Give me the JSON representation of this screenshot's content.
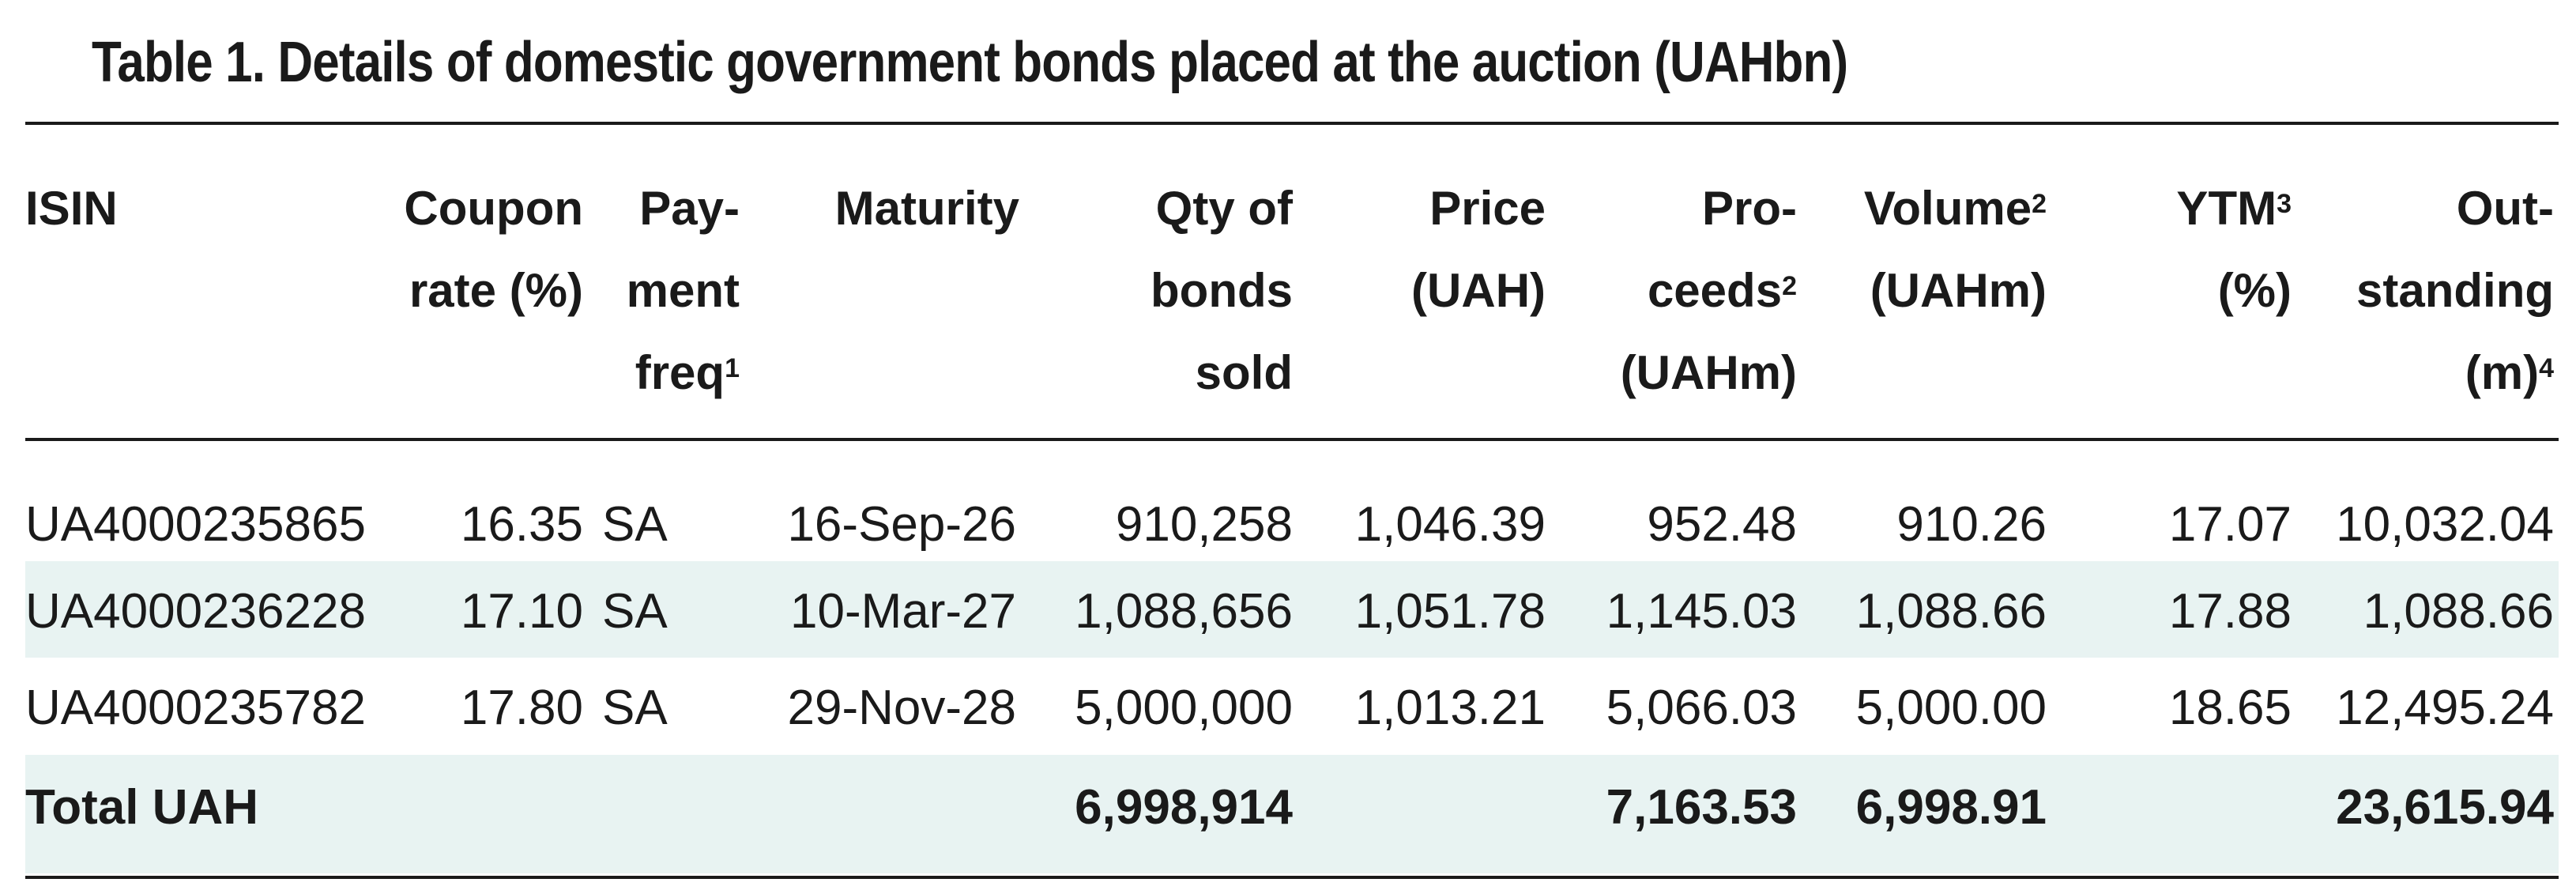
{
  "title": "Table 1. Details of domestic government bonds placed at the auction (UAHbn)",
  "headers": {
    "isin": {
      "text": "ISIN",
      "sup": ""
    },
    "coupon": {
      "text": "Coupon\nrate (%)",
      "sup": ""
    },
    "pay_freq": {
      "text": "Pay-\nment\nfreq",
      "sup": "1"
    },
    "maturity": {
      "text": "Maturity",
      "sup": ""
    },
    "qty": {
      "text": "Qty of\nbonds\nsold",
      "sup": ""
    },
    "price": {
      "text": "Price\n(UAH)",
      "sup": ""
    },
    "proceeds_a": {
      "text": "Pro-\nceeds",
      "sup": "2"
    },
    "proceeds_b": {
      "text": "(UAHm)",
      "sup": ""
    },
    "volume_a": {
      "text": "Volume",
      "sup": "2"
    },
    "volume_b": {
      "text": "(UAHm)",
      "sup": ""
    },
    "ytm_a": {
      "text": "YTM",
      "sup": "3"
    },
    "ytm_b": {
      "text": "(%)",
      "sup": ""
    },
    "outstanding_a": {
      "text": "Out-\nstanding\n(m)",
      "sup": "4"
    }
  },
  "rows": [
    {
      "isin": "UA4000235865",
      "coupon": "16.35",
      "pay_freq": "SA",
      "maturity": "16-Sep-26",
      "qty": "910,258",
      "price": "1,046.39",
      "proceeds": "952.48",
      "volume": "910.26",
      "ytm": "17.07",
      "outstanding": "10,032.04"
    },
    {
      "isin": "UA4000236228",
      "coupon": "17.10",
      "pay_freq": "SA",
      "maturity": "10-Mar-27",
      "qty": "1,088,656",
      "price": "1,051.78",
      "proceeds": "1,145.03",
      "volume": "1,088.66",
      "ytm": "17.88",
      "outstanding": "1,088.66"
    },
    {
      "isin": "UA4000235782",
      "coupon": "17.80",
      "pay_freq": "SA",
      "maturity": "29-Nov-28",
      "qty": "5,000,000",
      "price": "1,013.21",
      "proceeds": "5,066.03",
      "volume": "5,000.00",
      "ytm": "18.65",
      "outstanding": "12,495.24"
    }
  ],
  "total": {
    "label": "Total UAH",
    "qty": "6,998,914",
    "proceeds": "7,163.53",
    "volume": "6,998.91",
    "outstanding": "23,615.94"
  },
  "colors": {
    "band": "#e8f3f2",
    "rule": "#1a1a1a",
    "text": "#1a1a1a"
  }
}
